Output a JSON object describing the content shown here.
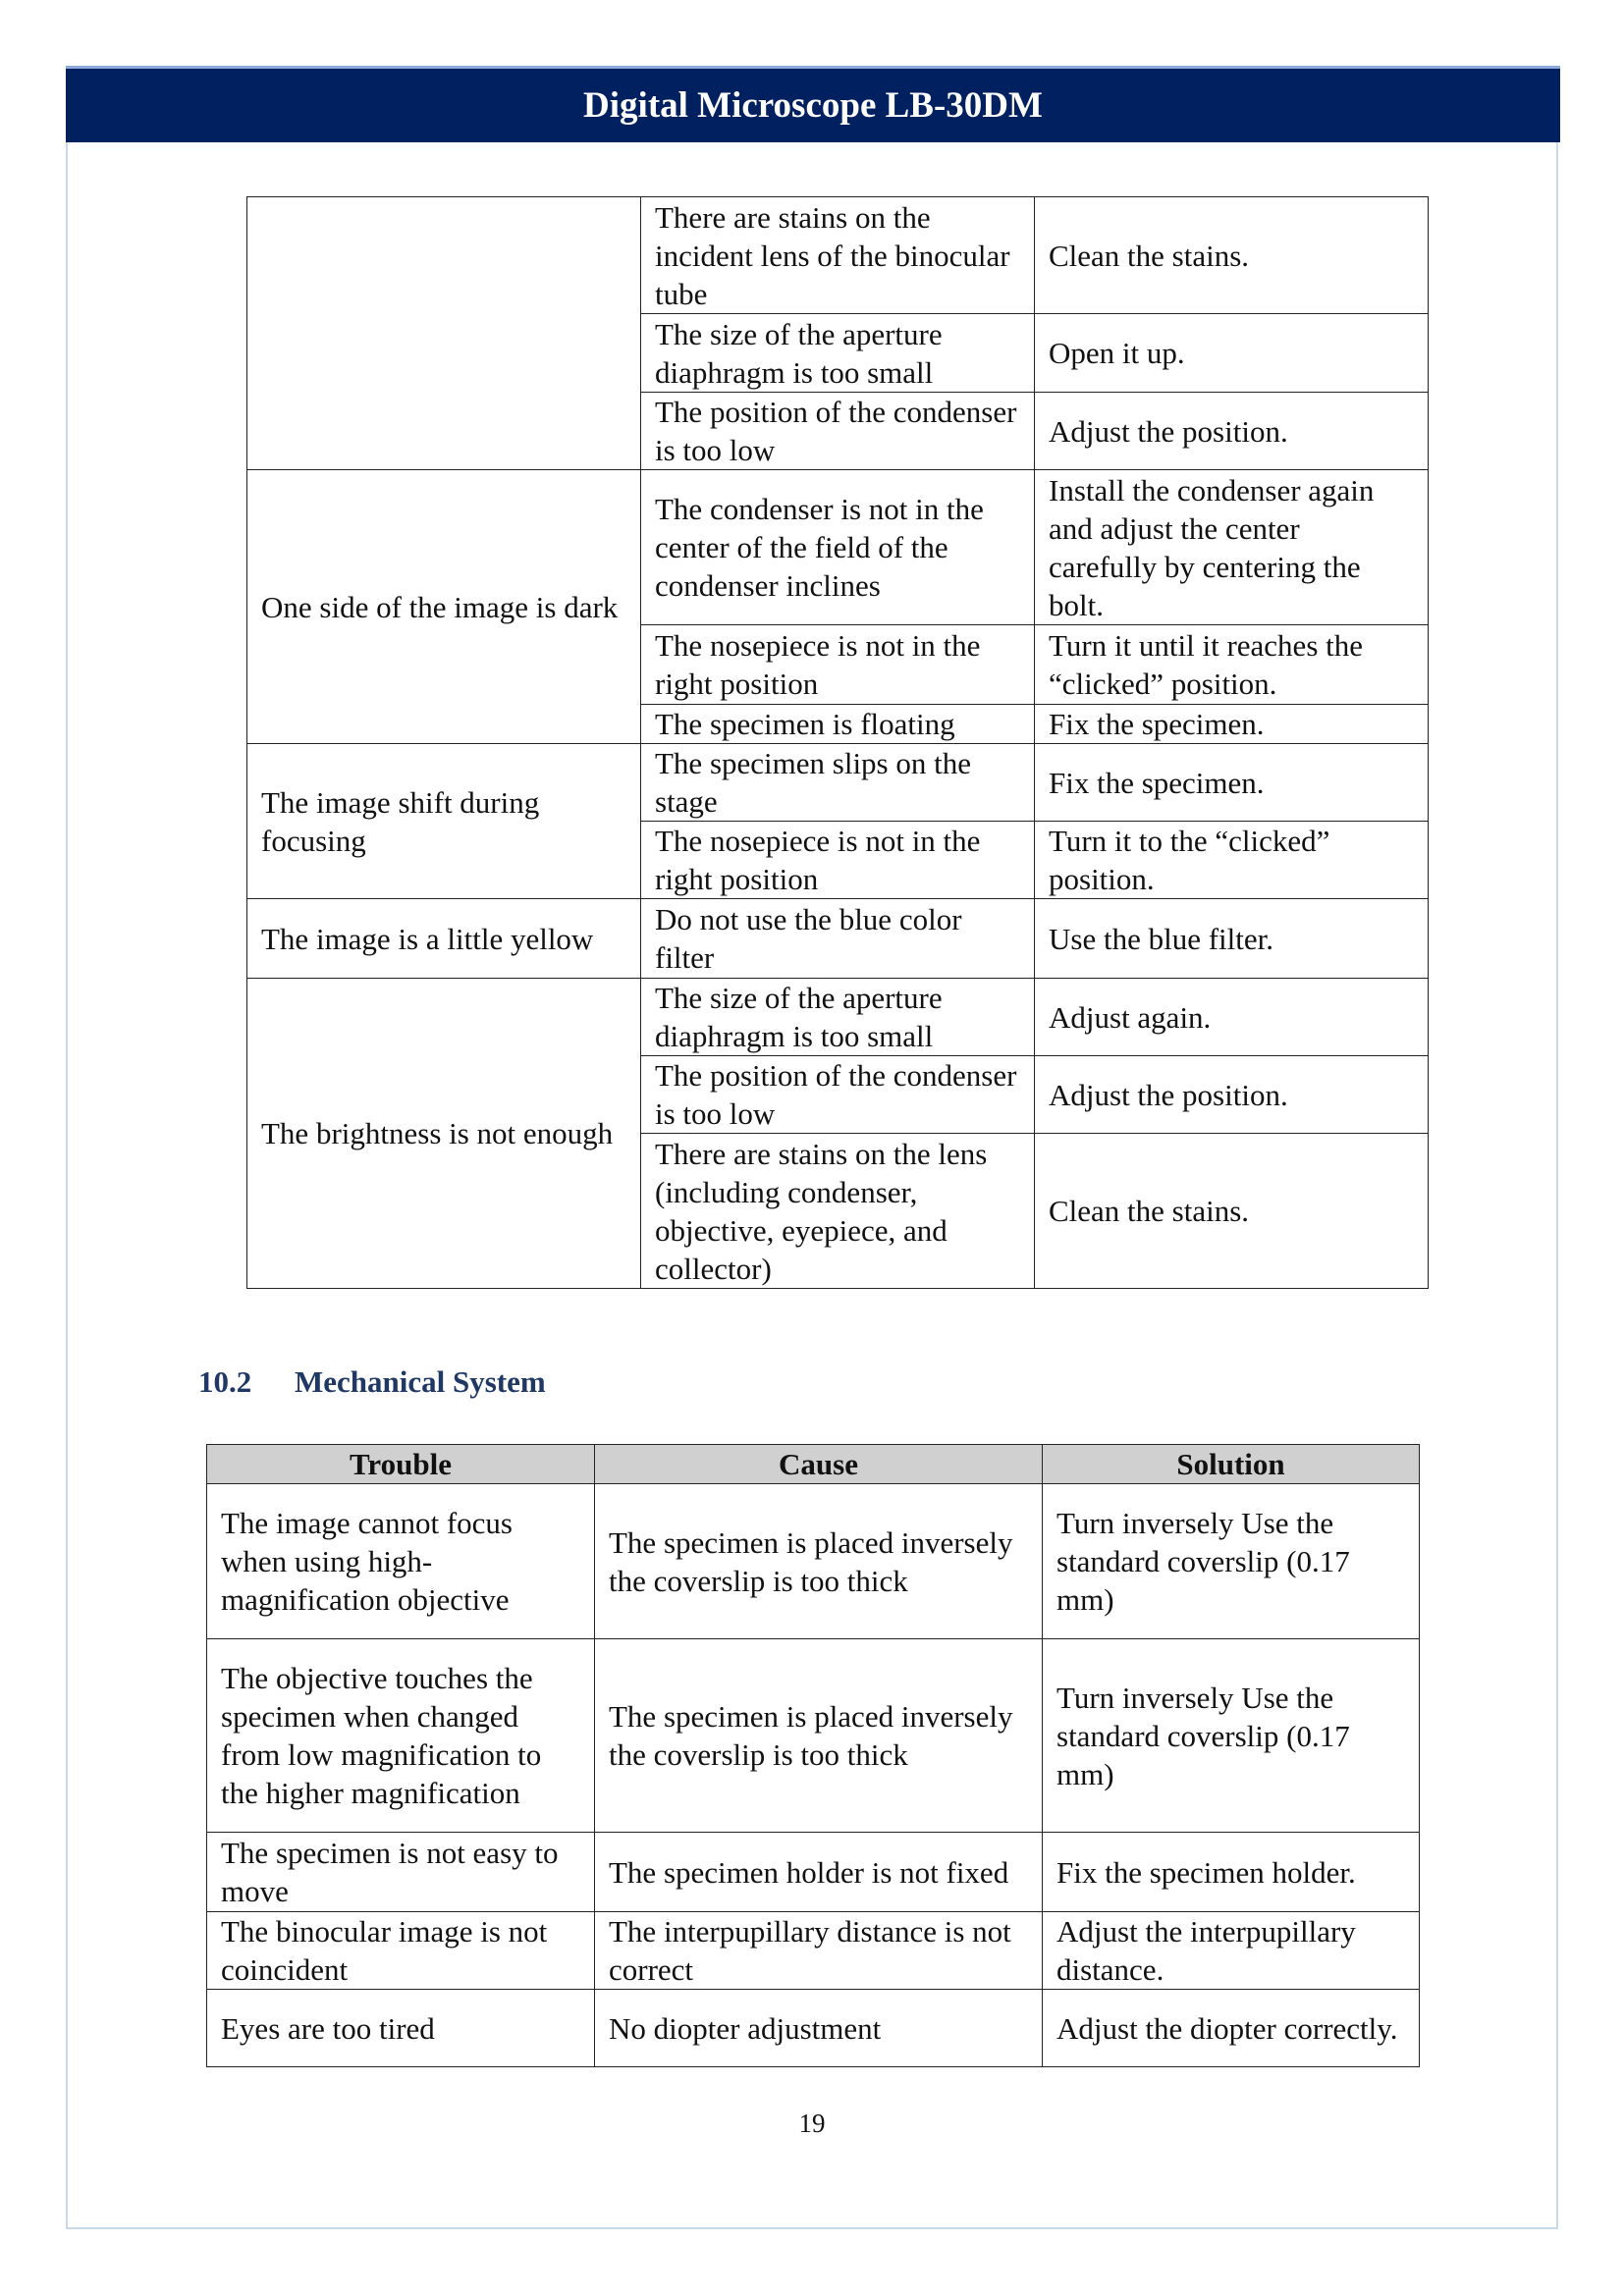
{
  "header": {
    "title": "Digital Microscope LB-30DM"
  },
  "table1": {
    "rows": [
      {
        "trouble": "",
        "cause": "There are stains on the incident lens of the binocular tube",
        "solution": "Clean the stains."
      },
      {
        "cause": "The size of the aperture diaphragm is too small",
        "solution": "Open it up."
      },
      {
        "cause": "The position of the condenser is too low",
        "solution": "Adjust the position."
      },
      {
        "trouble": "One side of the image is dark",
        "cause": "The condenser is not in the center of the field of the condenser inclines",
        "solution": "Install the condenser again and adjust the center carefully by centering the bolt."
      },
      {
        "cause": "The nosepiece is not in the right position",
        "solution": "Turn it until it reaches the “clicked” position."
      },
      {
        "cause": "The specimen is floating",
        "solution": "Fix the specimen."
      },
      {
        "trouble": "The image shift during focusing",
        "cause": "The specimen slips on the stage",
        "solution": "Fix the specimen."
      },
      {
        "cause": "The nosepiece is not in the right position",
        "solution": "Turn it to the “clicked” position."
      },
      {
        "trouble": "The image is a little yellow",
        "cause": "Do not use the blue color filter",
        "solution": "Use the blue filter."
      },
      {
        "trouble": "The brightness is not enough",
        "cause": "The size of the aperture diaphragm is too small",
        "solution": "Adjust again."
      },
      {
        "cause": "The position of the condenser is too low",
        "solution": "Adjust the position."
      },
      {
        "cause": "There are stains on the lens (including condenser, objective, eyepiece, and collector)",
        "solution": "Clean the stains."
      }
    ]
  },
  "section": {
    "number": "10.2",
    "title": "Mechanical System"
  },
  "table2": {
    "headers": [
      "Trouble",
      "Cause",
      "Solution"
    ],
    "rows": [
      [
        "The image cannot focus when using high-magnification objective",
        "The specimen is placed inversely the coverslip is too thick",
        "Turn inversely Use the standard coverslip (0.17 mm)"
      ],
      [
        "The objective touches the specimen when changed from low magnification to the higher magnification",
        "The specimen is placed inversely the coverslip is too thick",
        "Turn inversely Use the standard coverslip (0.17 mm)"
      ],
      [
        "The specimen is not easy to move",
        "The specimen holder is not fixed",
        "Fix the specimen holder."
      ],
      [
        "The binocular image is not coincident",
        "The interpupillary distance is not correct",
        "Adjust the interpupillary distance."
      ],
      [
        "Eyes are too tired",
        "No diopter adjustment",
        "Adjust the diopter correctly."
      ]
    ]
  },
  "page_number": "19",
  "colors": {
    "header_bg": "#002060",
    "section_title": "#1f3864",
    "table_header_bg": "#d0d0d0"
  }
}
